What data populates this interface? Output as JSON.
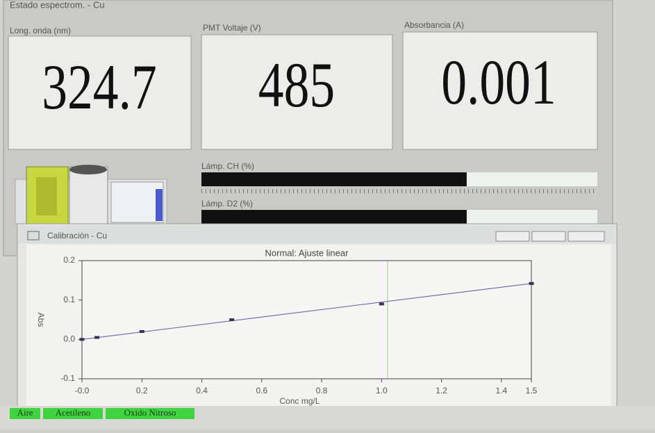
{
  "window": {
    "title": "Estado espectrom. - Cu"
  },
  "readouts": [
    {
      "label": "Long. onda (nm)",
      "value": "324.7"
    },
    {
      "label": "PMT Voltaje (V)",
      "value": "485"
    },
    {
      "label": "Absorbancia (A)",
      "value": "0.001"
    }
  ],
  "lamps": [
    {
      "label": "Lámp. CH (%)",
      "value": 67
    },
    {
      "label": "Lámp. D2 (%)",
      "value": 67
    }
  ],
  "calibration": {
    "title": "Calibración - Cu"
  },
  "chart_data": {
    "type": "scatter",
    "title": "Normal: Ajuste linear",
    "x_label": "Conc mg/L",
    "y_label": "Abs",
    "x": [
      0,
      0.05,
      0.2,
      0.5,
      1.0,
      1.5
    ],
    "values": [
      0.0,
      0.005,
      0.02,
      0.05,
      0.09,
      0.142
    ],
    "fit": {
      "x": [
        0,
        1.5
      ],
      "values": [
        0,
        0.142
      ]
    },
    "cursor_x": 1.02,
    "xlim": [
      0,
      1.5
    ],
    "ylim": [
      -0.1,
      0.2
    ],
    "xticks": [
      {
        "value": 0,
        "label": "-0.0"
      },
      0.2,
      0.4,
      0.6,
      0.8,
      {
        "value": 1,
        "label": "1.0"
      },
      1.2,
      1.4,
      1.5
    ],
    "yticks": [
      -0.1,
      {
        "value": 0,
        "label": "0.0"
      },
      0.1,
      0.2
    ],
    "color": "#333355",
    "fit_color": "#7a6aa8",
    "cursor_color": "#8fd68f"
  },
  "status": [
    "Aire",
    "Acetileno",
    "Oxido Nitroso"
  ]
}
